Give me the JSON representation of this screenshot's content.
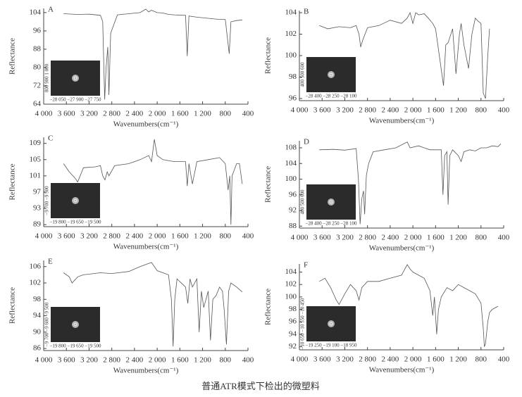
{
  "chart_data": [
    {
      "type": "line",
      "title": "A",
      "ylabel": "Reflectance",
      "xlabel": "Wavenumbers(cm⁻¹)",
      "color": "#555555",
      "x": [
        3650,
        3400,
        3200,
        3000,
        2960,
        2925,
        2900,
        2870,
        2850,
        2820,
        2700,
        2500,
        2300,
        2200,
        2150,
        2100,
        2000,
        1900,
        1800,
        1700,
        1500,
        1470,
        1440,
        1300,
        1100,
        900,
        800,
        730,
        700,
        600,
        500
      ],
      "values": [
        103.5,
        103.2,
        103.3,
        102.8,
        100,
        66,
        80,
        89,
        68,
        95,
        103,
        103.5,
        104,
        105.5,
        104.3,
        105,
        104,
        103.8,
        103.2,
        103,
        102.8,
        85,
        102.5,
        102,
        101.5,
        101,
        101,
        86,
        100,
        100.5,
        100.8
      ],
      "xlim": [
        4000,
        400
      ],
      "ylim": [
        64,
        105.8
      ],
      "xticks": [
        {
          "value": 4000,
          "label": "4 000"
        },
        {
          "value": 3600,
          "label": "3 600"
        },
        {
          "value": 3200,
          "label": "3 200"
        },
        {
          "value": 2800,
          "label": "2 800"
        },
        {
          "value": 2400,
          "label": "2 400"
        },
        {
          "value": 2000,
          "label": "2 000"
        },
        {
          "value": 1600,
          "label": "1 600"
        },
        {
          "value": 1200,
          "label": "1 200"
        },
        800,
        400
      ],
      "yticks": [
        64,
        72,
        80,
        88,
        96,
        104
      ],
      "inset": {
        "xlabel": "−28 050 −27 900 −27 750",
        "ylabel": "800 900 1 000"
      }
    },
    {
      "type": "line",
      "title": "B",
      "ylabel": "Reflectance",
      "xlabel": "Wavenumbers(cm⁻¹)",
      "color": "#555555",
      "x": [
        3650,
        3500,
        3300,
        3100,
        3000,
        2950,
        2920,
        2880,
        2800,
        2600,
        2400,
        2200,
        2100,
        2050,
        2000,
        1950,
        1900,
        1800,
        1730,
        1650,
        1600,
        1460,
        1420,
        1380,
        1300,
        1240,
        1180,
        1150,
        1100,
        1020,
        960,
        900,
        850,
        800,
        760,
        720,
        680,
        650
      ],
      "values": [
        102.8,
        102.5,
        102.7,
        102.6,
        102.8,
        102,
        100.8,
        101.5,
        102.6,
        102.8,
        103.3,
        103,
        103.5,
        104,
        103,
        104,
        103.8,
        103.9,
        103.5,
        103,
        102.5,
        97.2,
        101,
        101.2,
        102.5,
        98.3,
        102,
        103,
        101,
        98.8,
        102,
        103.5,
        103.2,
        103,
        96.5,
        96,
        100,
        102.5
      ],
      "xlim": [
        4000,
        400
      ],
      "ylim": [
        95.8,
        104.2
      ],
      "xticks": [
        {
          "value": 4000,
          "label": "4 000"
        },
        {
          "value": 3600,
          "label": "3 600"
        },
        {
          "value": 3200,
          "label": "3 200"
        },
        {
          "value": 2800,
          "label": "2 800"
        },
        {
          "value": 2400,
          "label": "2 400"
        },
        {
          "value": 2000,
          "label": "2 000"
        },
        {
          "value": 1600,
          "label": "1 600"
        },
        {
          "value": 1200,
          "label": "1 200"
        },
        800,
        400
      ],
      "yticks": [
        96,
        98,
        100,
        102,
        104
      ],
      "inset": {
        "xlabel": "−28 400 −28 250 −28 100",
        "ylabel": "400 500 600"
      }
    },
    {
      "type": "line",
      "title": "C",
      "ylabel": "Reflectance",
      "xlabel": "Wavenumbers(cm⁻¹)",
      "color": "#555555",
      "x": [
        3650,
        3550,
        3450,
        3400,
        3300,
        3100,
        3000,
        2960,
        2920,
        2880,
        2850,
        2750,
        2500,
        2300,
        2150,
        2100,
        2050,
        2000,
        1900,
        1700,
        1500,
        1470,
        1440,
        1380,
        1300,
        1100,
        900,
        800,
        750,
        720,
        700,
        680,
        600,
        550,
        500
      ],
      "values": [
        104,
        102,
        100.5,
        99.5,
        103,
        103.2,
        103.5,
        101,
        100,
        102,
        101,
        103.5,
        104,
        105,
        106,
        104.5,
        110,
        106,
        105,
        104.5,
        104.5,
        98.5,
        104,
        99,
        104.5,
        105,
        105.5,
        104,
        97.5,
        101,
        89,
        101,
        104,
        104,
        99
      ],
      "xlim": [
        4000,
        400
      ],
      "ylim": [
        88.5,
        110.5
      ],
      "xticks": [
        {
          "value": 4000,
          "label": "4 000"
        },
        {
          "value": 3600,
          "label": "3 600"
        },
        {
          "value": 3200,
          "label": "3 200"
        },
        {
          "value": 2800,
          "label": "2 800"
        },
        {
          "value": 2400,
          "label": "2 400"
        },
        {
          "value": 2000,
          "label": "2 000"
        },
        {
          "value": 1600,
          "label": "1 600"
        },
        {
          "value": 1200,
          "label": "1 200"
        },
        800,
        400
      ],
      "yticks": [
        89,
        93,
        97,
        101,
        105,
        109
      ],
      "inset": {
        "xlabel": "−19 800 −19 650 −19 500",
        "ylabel": "−9 700 −9 500"
      }
    },
    {
      "type": "line",
      "title": "D",
      "ylabel": "Reflectance",
      "xlabel": "Wavenumbers(cm⁻¹)",
      "color": "#555555",
      "x": [
        3650,
        3400,
        3200,
        3000,
        2960,
        2930,
        2900,
        2870,
        2850,
        2820,
        2780,
        2700,
        2500,
        2300,
        2100,
        2050,
        1900,
        1800,
        1700,
        1500,
        1470,
        1440,
        1400,
        1380,
        1350,
        1300,
        1200,
        1150,
        1100,
        1000,
        900,
        800,
        700,
        600,
        500,
        450
      ],
      "values": [
        107.5,
        107.6,
        107.4,
        107.8,
        100,
        88.5,
        95,
        97,
        91,
        101,
        104,
        107,
        107.5,
        108,
        109.5,
        108,
        108.5,
        108,
        107.5,
        107.5,
        96,
        106,
        107,
        93.5,
        106,
        107.5,
        106,
        104.5,
        107,
        107.5,
        107.2,
        108,
        108,
        108.5,
        108.3,
        109
      ],
      "xlim": [
        4000,
        400
      ],
      "ylim": [
        87.5,
        109.8
      ],
      "xticks": [
        {
          "value": 4000,
          "label": "4 000"
        },
        {
          "value": 3600,
          "label": "3 600"
        },
        {
          "value": 3200,
          "label": "3 200"
        },
        {
          "value": 2800,
          "label": "2 800"
        },
        {
          "value": 2400,
          "label": "2 400"
        },
        {
          "value": 2000,
          "label": "2 000"
        },
        {
          "value": 1600,
          "label": "1 600"
        },
        {
          "value": 1200,
          "label": "1 200"
        },
        800,
        400
      ],
      "yticks": [
        88,
        92,
        96,
        100,
        104,
        108
      ],
      "inset": {
        "xlabel": "−28 400 −28 250 −28 100",
        "ylabel": "400 500 600"
      }
    },
    {
      "type": "line",
      "title": "E",
      "ylabel": "Reflectance",
      "xlabel": "Wavenumbers(cm⁻¹)",
      "color": "#555555",
      "x": [
        3650,
        3550,
        3500,
        3400,
        3300,
        3000,
        2800,
        2500,
        2300,
        2200,
        2100,
        2000,
        1800,
        1750,
        1720,
        1690,
        1650,
        1500,
        1460,
        1420,
        1380,
        1300,
        1260,
        1220,
        1180,
        1100,
        1060,
        1020,
        960,
        900,
        850,
        820,
        780,
        740,
        700,
        600,
        500
      ],
      "values": [
        104.5,
        103.5,
        102,
        103.5,
        104,
        104.5,
        104.3,
        104.8,
        106,
        106.5,
        107,
        105,
        104,
        98,
        86.5,
        98,
        103,
        101,
        97,
        103,
        101,
        103,
        90,
        100,
        96,
        100,
        88,
        98,
        99,
        101,
        100,
        95.5,
        87,
        100,
        102,
        101,
        99.8
      ],
      "xlim": [
        4000,
        400
      ],
      "ylim": [
        85.5,
        107.5
      ],
      "xticks": [
        {
          "value": 4000,
          "label": "4 000"
        },
        {
          "value": 3600,
          "label": "3 600"
        },
        {
          "value": 3200,
          "label": "3 200"
        },
        {
          "value": 2800,
          "label": "2 800"
        },
        {
          "value": 2400,
          "label": "2 400"
        },
        {
          "value": 2000,
          "label": "2 000"
        },
        {
          "value": 1600,
          "label": "1 600"
        },
        {
          "value": 1200,
          "label": "1 200"
        },
        800,
        400
      ],
      "yticks": [
        86,
        90,
        94,
        98,
        102,
        106
      ],
      "inset": {
        "xlabel": "−19 800 −19 650 −19 500",
        "ylabel": "−9 700 −9 600 −9 500"
      }
    },
    {
      "type": "line",
      "title": "F",
      "ylabel": "Reflectance",
      "xlabel": "Wavenumbers(cm⁻¹)",
      "color": "#555555",
      "x": [
        3650,
        3550,
        3450,
        3350,
        3300,
        3200,
        3100,
        3000,
        2950,
        2900,
        2800,
        2600,
        2400,
        2200,
        2100,
        2050,
        2000,
        1900,
        1800,
        1700,
        1650,
        1620,
        1580,
        1550,
        1500,
        1400,
        1300,
        1200,
        1100,
        1000,
        900,
        800,
        760,
        740,
        720,
        680,
        650,
        600,
        500
      ],
      "values": [
        102.5,
        103,
        101.5,
        99.5,
        98.8,
        100.5,
        102,
        101,
        99.5,
        101.5,
        102.5,
        102.5,
        103,
        103.5,
        105.2,
        104.5,
        104,
        103.5,
        103,
        101,
        97,
        100,
        94,
        98,
        100,
        101.5,
        101,
        102,
        101.5,
        101,
        100.5,
        99,
        95,
        92,
        92.5,
        96,
        97.5,
        98,
        98.5
      ],
      "xlim": [
        4000,
        400
      ],
      "ylim": [
        91.5,
        105.3
      ],
      "xticks": [
        {
          "value": 4000,
          "label": "4 000"
        },
        {
          "value": 3600,
          "label": "3 600"
        },
        {
          "value": 3200,
          "label": "3 200"
        },
        {
          "value": 2800,
          "label": "2 800"
        },
        {
          "value": 2400,
          "label": "2 400"
        },
        {
          "value": 2000,
          "label": "2 000"
        },
        {
          "value": 1600,
          "label": "1 600"
        },
        {
          "value": 1200,
          "label": "1 200"
        },
        800,
        400
      ],
      "yticks": [
        92,
        94,
        96,
        98,
        100,
        102,
        104
      ],
      "inset": {
        "xlabel": "−19 250 −19 100 −18 950",
        "ylabel": "−10 650 −10 550 −10 450"
      }
    }
  ],
  "caption": "普通ATR模式下检出的微塑料"
}
